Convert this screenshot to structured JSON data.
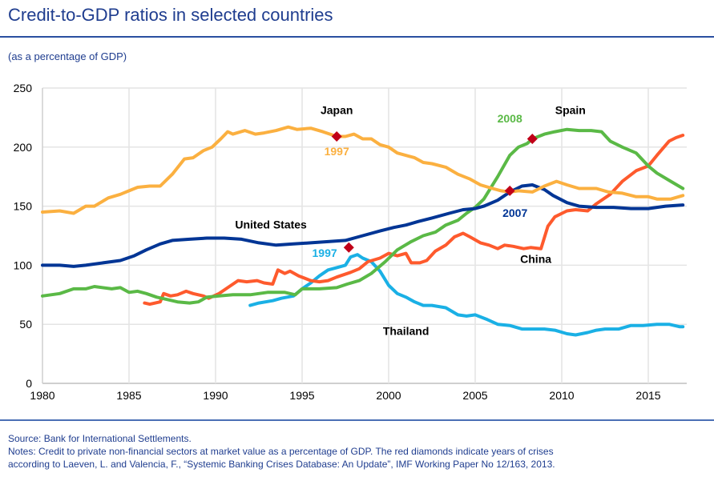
{
  "header": {
    "title": "Credit-to-GDP ratios in selected countries",
    "subtitle": "(as a percentage of GDP)"
  },
  "footer": {
    "source": "Source: Bank for International Settlements.",
    "notes_line1": "Notes: Credit to private non-financial sectors at market value as a percentage of GDP. The red diamonds indicate years of crises",
    "notes_line2": "according to Laeven, L. and Valencia, F., “Systemic Banking Crises Database: An Update”, IMF Working Paper No 12/163, 2013."
  },
  "chart_data": {
    "type": "line",
    "title": "Credit-to-GDP ratios in selected countries",
    "subtitle": "(as a percentage of GDP)",
    "xlabel": "",
    "ylabel": "",
    "xlim": [
      1980,
      2017.5
    ],
    "ylim": [
      0,
      250
    ],
    "xticks": [
      1980,
      1985,
      1990,
      1995,
      2000,
      2005,
      2010,
      2015
    ],
    "yticks": [
      0,
      50,
      100,
      150,
      200,
      250
    ],
    "grid": true,
    "legend": "inline labels",
    "series": [
      {
        "name": "Japan",
        "color": "#fbb040",
        "points": [
          [
            1980,
            145
          ],
          [
            1981,
            146
          ],
          [
            1981.8,
            144
          ],
          [
            1982.5,
            150
          ],
          [
            1983,
            150
          ],
          [
            1983.8,
            157
          ],
          [
            1984.5,
            160
          ],
          [
            1985,
            163
          ],
          [
            1985.5,
            166
          ],
          [
            1986.2,
            167
          ],
          [
            1986.8,
            167
          ],
          [
            1987.5,
            177
          ],
          [
            1988.2,
            190
          ],
          [
            1988.7,
            191
          ],
          [
            1989.3,
            197
          ],
          [
            1989.8,
            200
          ],
          [
            1990.3,
            207
          ],
          [
            1990.7,
            213
          ],
          [
            1991,
            211
          ],
          [
            1991.7,
            214
          ],
          [
            1992.3,
            211
          ],
          [
            1992.8,
            212
          ],
          [
            1993.5,
            214
          ],
          [
            1994.2,
            217
          ],
          [
            1994.7,
            215
          ],
          [
            1995.5,
            216
          ],
          [
            1996.2,
            213
          ],
          [
            1997,
            209
          ],
          [
            1997.5,
            209
          ],
          [
            1998,
            211
          ],
          [
            1998.5,
            207
          ],
          [
            1999,
            207
          ],
          [
            1999.5,
            202
          ],
          [
            2000,
            200
          ],
          [
            2000.5,
            195
          ],
          [
            2001.5,
            191
          ],
          [
            2002,
            187
          ],
          [
            2002.5,
            186
          ],
          [
            2003.3,
            183
          ],
          [
            2004,
            177
          ],
          [
            2004.7,
            173
          ],
          [
            2005.3,
            168
          ],
          [
            2006,
            165
          ],
          [
            2006.5,
            163
          ],
          [
            2007,
            162
          ],
          [
            2007.5,
            163
          ],
          [
            2008.3,
            162
          ],
          [
            2009,
            167
          ],
          [
            2009.7,
            171
          ],
          [
            2010.3,
            168
          ],
          [
            2011,
            165
          ],
          [
            2012,
            165
          ],
          [
            2012.7,
            162
          ],
          [
            2013.5,
            161
          ],
          [
            2014.3,
            158
          ],
          [
            2015,
            158
          ],
          [
            2015.5,
            156
          ],
          [
            2016.3,
            156
          ],
          [
            2017,
            159
          ]
        ]
      },
      {
        "name": "United States",
        "color": "#003595",
        "points": [
          [
            1980,
            100
          ],
          [
            1981,
            100
          ],
          [
            1981.8,
            99
          ],
          [
            1982.5,
            100
          ],
          [
            1983.5,
            102
          ],
          [
            1984.5,
            104
          ],
          [
            1985.3,
            108
          ],
          [
            1986,
            113
          ],
          [
            1986.8,
            118
          ],
          [
            1987.5,
            121
          ],
          [
            1988.5,
            122
          ],
          [
            1989.5,
            123
          ],
          [
            1990.5,
            123
          ],
          [
            1991.5,
            122
          ],
          [
            1992.5,
            119
          ],
          [
            1993.5,
            117
          ],
          [
            1994.5,
            118
          ],
          [
            1995.5,
            119
          ],
          [
            1996.5,
            120
          ],
          [
            1997.5,
            121
          ],
          [
            1998.5,
            125
          ],
          [
            1999.5,
            129
          ],
          [
            2000.3,
            132
          ],
          [
            2001,
            134
          ],
          [
            2001.7,
            137
          ],
          [
            2002.5,
            140
          ],
          [
            2003.5,
            144
          ],
          [
            2004.3,
            147
          ],
          [
            2005,
            148
          ],
          [
            2005.5,
            150
          ],
          [
            2006.3,
            155
          ],
          [
            2007,
            162
          ],
          [
            2007.7,
            167
          ],
          [
            2008.3,
            168
          ],
          [
            2009,
            164
          ],
          [
            2009.5,
            159
          ],
          [
            2010.3,
            153
          ],
          [
            2011,
            150
          ],
          [
            2012,
            149
          ],
          [
            2013,
            149
          ],
          [
            2014,
            148
          ],
          [
            2015,
            148
          ],
          [
            2016,
            150
          ],
          [
            2017,
            151
          ]
        ]
      },
      {
        "name": "Spain",
        "color": "#5ab946",
        "points": [
          [
            1980,
            74
          ],
          [
            1981,
            76
          ],
          [
            1981.8,
            80
          ],
          [
            1982.5,
            80
          ],
          [
            1983,
            82
          ],
          [
            1984,
            80
          ],
          [
            1984.5,
            81
          ],
          [
            1985,
            77
          ],
          [
            1985.5,
            78
          ],
          [
            1986,
            76
          ],
          [
            1986.6,
            73
          ],
          [
            1987.2,
            71
          ],
          [
            1987.8,
            69
          ],
          [
            1988.5,
            68
          ],
          [
            1989,
            69
          ],
          [
            1989.5,
            73
          ],
          [
            1990.2,
            74
          ],
          [
            1991,
            75
          ],
          [
            1992,
            75
          ],
          [
            1993,
            77
          ],
          [
            1994,
            77
          ],
          [
            1994.6,
            75
          ],
          [
            1995,
            80
          ],
          [
            1996,
            80
          ],
          [
            1997,
            81
          ],
          [
            1997.6,
            84
          ],
          [
            1998.3,
            87
          ],
          [
            1999,
            93
          ],
          [
            1999.8,
            103
          ],
          [
            2000.5,
            113
          ],
          [
            2001.3,
            120
          ],
          [
            2002,
            125
          ],
          [
            2002.7,
            128
          ],
          [
            2003.3,
            134
          ],
          [
            2004,
            138
          ],
          [
            2004.5,
            144
          ],
          [
            2005,
            149
          ],
          [
            2005.5,
            156
          ],
          [
            2006.3,
            175
          ],
          [
            2007,
            193
          ],
          [
            2007.5,
            200
          ],
          [
            2008,
            203
          ],
          [
            2008.3,
            207
          ],
          [
            2009,
            211
          ],
          [
            2009.6,
            213
          ],
          [
            2010.3,
            215
          ],
          [
            2011,
            214
          ],
          [
            2011.7,
            214
          ],
          [
            2012.3,
            213
          ],
          [
            2012.8,
            205
          ],
          [
            2013.5,
            200
          ],
          [
            2014.3,
            195
          ],
          [
            2015,
            184
          ],
          [
            2015.5,
            178
          ],
          [
            2016.3,
            171
          ],
          [
            2017,
            165
          ]
        ]
      },
      {
        "name": "China",
        "color": "#fe5a2d",
        "points": [
          [
            1985.9,
            68
          ],
          [
            1986.2,
            67
          ],
          [
            1986.8,
            69
          ],
          [
            1987,
            76
          ],
          [
            1987.4,
            74
          ],
          [
            1987.8,
            75
          ],
          [
            1988.3,
            78
          ],
          [
            1988.7,
            76
          ],
          [
            1989.3,
            74
          ],
          [
            1989.6,
            72
          ],
          [
            1990.2,
            76
          ],
          [
            1990.6,
            80
          ],
          [
            1991.3,
            87
          ],
          [
            1991.8,
            86
          ],
          [
            1992.4,
            87
          ],
          [
            1992.8,
            85
          ],
          [
            1993.3,
            84
          ],
          [
            1993.6,
            96
          ],
          [
            1994,
            93
          ],
          [
            1994.3,
            95
          ],
          [
            1994.8,
            91
          ],
          [
            1995.5,
            87
          ],
          [
            1996,
            86
          ],
          [
            1996.5,
            87
          ],
          [
            1997,
            90
          ],
          [
            1997.8,
            94
          ],
          [
            1998.3,
            97
          ],
          [
            1998.8,
            103
          ],
          [
            1999.5,
            106
          ],
          [
            2000,
            110
          ],
          [
            2000.5,
            108
          ],
          [
            2001,
            110
          ],
          [
            2001.3,
            102
          ],
          [
            2001.8,
            102
          ],
          [
            2002.2,
            104
          ],
          [
            2002.7,
            112
          ],
          [
            2003.3,
            117
          ],
          [
            2003.8,
            124
          ],
          [
            2004.3,
            127
          ],
          [
            2004.7,
            124
          ],
          [
            2005.3,
            119
          ],
          [
            2005.8,
            117
          ],
          [
            2006.3,
            114
          ],
          [
            2006.7,
            117
          ],
          [
            2007.2,
            116
          ],
          [
            2007.8,
            114
          ],
          [
            2008.2,
            115
          ],
          [
            2008.8,
            114
          ],
          [
            2009.2,
            133
          ],
          [
            2009.6,
            141
          ],
          [
            2010.3,
            146
          ],
          [
            2010.8,
            147
          ],
          [
            2011.5,
            146
          ],
          [
            2012,
            152
          ],
          [
            2012.8,
            160
          ],
          [
            2013.5,
            171
          ],
          [
            2014.3,
            180
          ],
          [
            2015,
            184
          ],
          [
            2015.5,
            193
          ],
          [
            2016.2,
            205
          ],
          [
            2016.6,
            208
          ],
          [
            2017,
            210
          ]
        ]
      },
      {
        "name": "Thailand",
        "color": "#1ab0e5",
        "points": [
          [
            1992,
            66
          ],
          [
            1992.5,
            68
          ],
          [
            1993.3,
            70
          ],
          [
            1993.8,
            72
          ],
          [
            1994.5,
            74
          ],
          [
            1995,
            80
          ],
          [
            1995.5,
            85
          ],
          [
            1996,
            91
          ],
          [
            1996.5,
            96
          ],
          [
            1997,
            98
          ],
          [
            1997.5,
            100
          ],
          [
            1997.8,
            107
          ],
          [
            1998.2,
            109
          ],
          [
            1998.5,
            106
          ],
          [
            1999,
            103
          ],
          [
            1999.5,
            95
          ],
          [
            2000,
            83
          ],
          [
            2000.5,
            76
          ],
          [
            2001,
            73
          ],
          [
            2001.5,
            69
          ],
          [
            2002,
            66
          ],
          [
            2002.5,
            66
          ],
          [
            2003.3,
            64
          ],
          [
            2004,
            58
          ],
          [
            2004.5,
            57
          ],
          [
            2005,
            58
          ],
          [
            2005.7,
            54
          ],
          [
            2006.3,
            50
          ],
          [
            2007,
            49
          ],
          [
            2007.7,
            46
          ],
          [
            2008.3,
            46
          ],
          [
            2009,
            46
          ],
          [
            2009.6,
            45
          ],
          [
            2010.3,
            42
          ],
          [
            2010.8,
            41
          ],
          [
            2011.5,
            43
          ],
          [
            2012,
            45
          ],
          [
            2012.5,
            46
          ],
          [
            2013.3,
            46
          ],
          [
            2014,
            49
          ],
          [
            2014.7,
            49
          ],
          [
            2015.5,
            50
          ],
          [
            2016.2,
            50
          ],
          [
            2016.8,
            48
          ],
          [
            2017,
            48
          ]
        ]
      }
    ],
    "crisis_markers": [
      {
        "country": "Japan",
        "year": 1997,
        "value": 209,
        "label": "1997",
        "color": "#c00018"
      },
      {
        "country": "Thailand",
        "year": 1997.7,
        "value": 115,
        "label": "1997",
        "color": "#c00018"
      },
      {
        "country": "United States",
        "year": 2007,
        "value": 163,
        "label": "2007",
        "color": "#c00018"
      },
      {
        "country": "Spain",
        "year": 2008.3,
        "value": 207,
        "label": "2008",
        "color": "#c00018"
      }
    ],
    "annotations": [
      {
        "text": "Japan",
        "x": 1997,
        "y": 228,
        "color": "#000000"
      },
      {
        "text": "United States",
        "x": 1993.2,
        "y": 131,
        "color": "#000000"
      },
      {
        "text": "Spain",
        "x": 2010.5,
        "y": 228,
        "color": "#000000"
      },
      {
        "text": "China",
        "x": 2008.5,
        "y": 102,
        "color": "#000000"
      },
      {
        "text": "Thailand",
        "x": 2001,
        "y": 41,
        "color": "#000000"
      },
      {
        "text": "1997",
        "x": 1997,
        "y": 193,
        "color": "#fbb040"
      },
      {
        "text": "1997",
        "x": 1996.3,
        "y": 107,
        "color": "#1ab0e5"
      },
      {
        "text": "2007",
        "x": 2007.3,
        "y": 141,
        "color": "#003595"
      },
      {
        "text": "2008",
        "x": 2007,
        "y": 221,
        "color": "#5ab946"
      }
    ]
  }
}
